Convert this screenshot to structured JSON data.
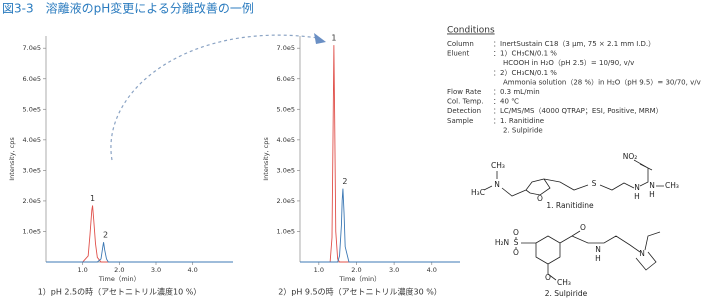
{
  "title": "図3-3　溶離液のpH変更による分離改善の一例",
  "chart_data": [
    {
      "type": "line",
      "ylabel": "Intensity, cps",
      "xlabel": "Time（min）",
      "caption": "1）pH 2.5の時（アセトニトリル濃度10 %）",
      "x": [
        0,
        1.0,
        1.15,
        1.2,
        1.25,
        1.27,
        1.3,
        1.35,
        1.4,
        1.5,
        1.55,
        1.57,
        1.6,
        1.65,
        1.7,
        5.1
      ],
      "series": [
        {
          "name": "1",
          "color": "#e0504a",
          "values": [
            0,
            0,
            20000,
            90000,
            170000,
            185000,
            140000,
            60000,
            15000,
            0,
            0,
            0,
            0,
            0,
            0,
            0
          ]
        },
        {
          "name": "2",
          "color": "#3c78b4",
          "values": [
            0,
            0,
            0,
            0,
            0,
            0,
            0,
            0,
            0,
            10000,
            50000,
            65000,
            40000,
            10000,
            0,
            0
          ]
        }
      ],
      "xlim": [
        0,
        5.1
      ],
      "ylim": [
        0,
        740000
      ],
      "xticks": [
        {
          "value": 1,
          "label": "1.0"
        },
        {
          "value": 2,
          "label": "2.0"
        },
        {
          "value": 3,
          "label": "3.0"
        },
        {
          "value": 4,
          "label": "4.0"
        }
      ],
      "yticks": [
        {
          "value": 100000,
          "label": "1.0e5"
        },
        {
          "value": 200000,
          "label": "2.0e5"
        },
        {
          "value": 300000,
          "label": "3.0e5"
        },
        {
          "value": 400000,
          "label": "4.0e5"
        },
        {
          "value": 500000,
          "label": "5.0e5"
        },
        {
          "value": 600000,
          "label": "6.0e5"
        },
        {
          "value": 700000,
          "label": "7.0e5"
        }
      ]
    },
    {
      "type": "line",
      "ylabel": "Intensity, cps",
      "xlabel": "Time（min）",
      "caption": "2）pH 9.5の時（アセトニトリル濃度30 %）",
      "x": [
        0.5,
        1.0,
        1.3,
        1.35,
        1.38,
        1.4,
        1.42,
        1.45,
        1.5,
        1.55,
        1.6,
        1.62,
        1.64,
        1.67,
        1.7,
        1.8,
        4.75
      ],
      "series": [
        {
          "name": "1",
          "color": "#e0504a",
          "values": [
            0,
            0,
            0,
            80000,
            450000,
            710000,
            480000,
            100000,
            10000,
            0,
            0,
            0,
            0,
            0,
            0,
            0,
            0
          ]
        },
        {
          "name": "2",
          "color": "#3c78b4",
          "values": [
            0,
            0,
            0,
            0,
            0,
            0,
            0,
            0,
            0,
            20000,
            120000,
            200000,
            240000,
            160000,
            50000,
            0,
            0
          ]
        }
      ],
      "xlim": [
        0.5,
        4.75
      ],
      "ylim": [
        0,
        740000
      ],
      "xticks": [
        {
          "value": 1,
          "label": "1.0"
        },
        {
          "value": 2,
          "label": "2.0"
        },
        {
          "value": 3,
          "label": "3.0"
        },
        {
          "value": 4,
          "label": "4.0"
        }
      ],
      "yticks": [
        {
          "value": 100000,
          "label": "1.0e5"
        },
        {
          "value": 200000,
          "label": "2.0e5"
        },
        {
          "value": 300000,
          "label": "3.0e5"
        },
        {
          "value": 400000,
          "label": "4.0e5"
        },
        {
          "value": 500000,
          "label": "5.0e5"
        },
        {
          "value": 600000,
          "label": "6.0e5"
        },
        {
          "value": 700000,
          "label": "7.0e5"
        }
      ]
    }
  ],
  "conditions": {
    "title": "Conditions",
    "rows": [
      {
        "label": "Column",
        "value": "：InertSustain C18（3 μm, 75 × 2.1 mm I.D.）"
      },
      {
        "label": "Eluent",
        "value": "：1）CH₃CN/0.1 %"
      },
      {
        "value": "HCOOH in H₂O（pH 2.5）= 10/90, v/v"
      },
      {
        "value": "：2）CH₃CN/0.1 %"
      },
      {
        "value": "Ammonia solution（28 %）in H₂O（pH 9.5）= 30/70, v/v"
      },
      {
        "label": "Flow Rate",
        "value": "：0.3 mL/min"
      },
      {
        "label": "Col. Temp.",
        "value": "：40 ℃"
      },
      {
        "label": "Detection",
        "value": "：LC/MS/MS（4000 QTRAP；ESI, Positive, MRM）"
      },
      {
        "label": "Sample",
        "value": "：1. Ranitidine"
      },
      {
        "value": "2. Sulpiride"
      }
    ]
  },
  "structures": [
    {
      "caption": "1. Ranitidine",
      "atoms": [
        "CH₃",
        "H₃C",
        "N",
        "O",
        "S",
        "N",
        "H",
        "NO₂",
        "N",
        "H",
        "CH₃"
      ]
    },
    {
      "caption": "2. Sulpiride",
      "atoms": [
        "O",
        "S",
        "O",
        "H₂N",
        "O",
        "N",
        "H",
        "N",
        "O",
        "CH₃"
      ]
    }
  ]
}
